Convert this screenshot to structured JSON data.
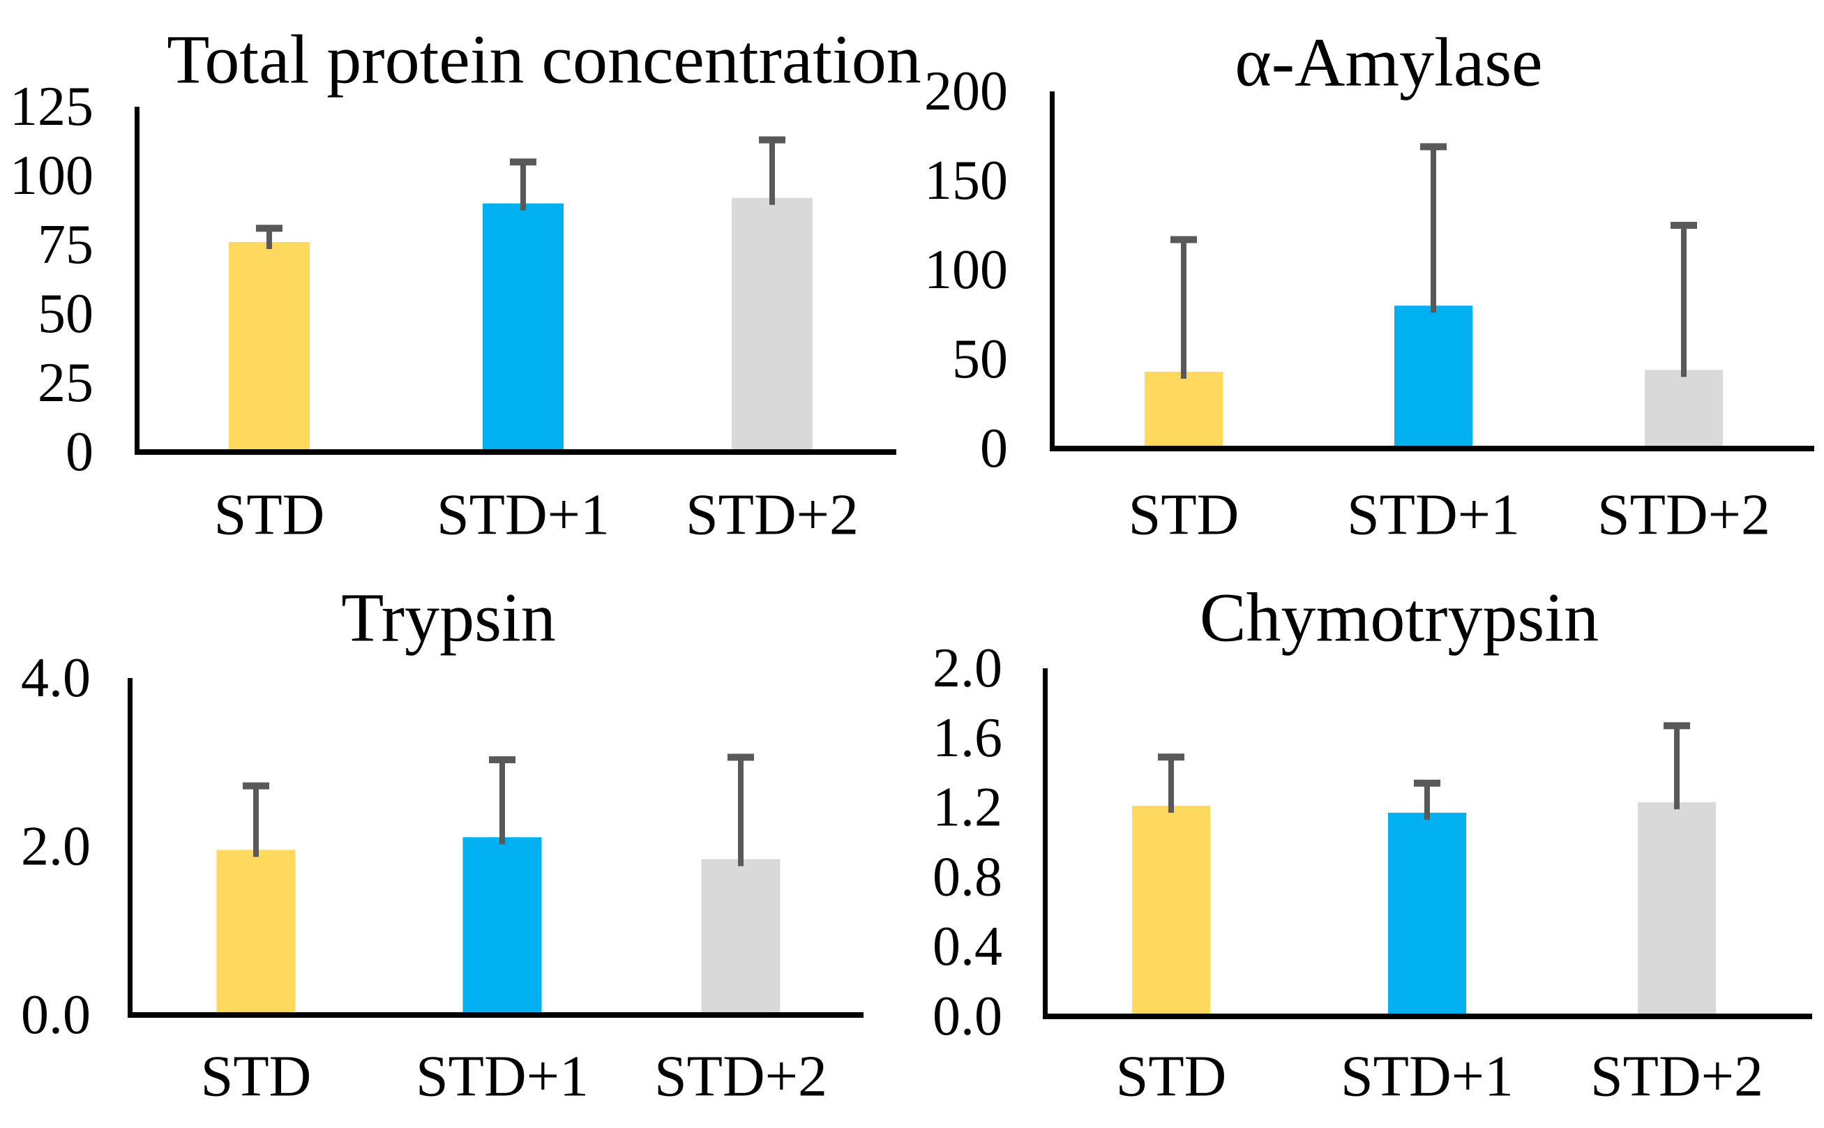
{
  "figure": {
    "background": "#FFFFFF",
    "description": "2x2 grid of bar charts with error bars"
  },
  "colors": {
    "axis": "#000000",
    "error_bar": "#595959",
    "text": "#000000",
    "bars": [
      "#FFD85E",
      "#00B0F0",
      "#D9D9D9"
    ]
  },
  "categories": [
    "STD",
    "STD+1",
    "STD+2"
  ],
  "chart_data": [
    {
      "type": "bar",
      "title": "Total protein concentration",
      "categories": [
        "STD",
        "STD+1",
        "STD+2"
      ],
      "values": [
        76,
        90,
        92
      ],
      "errors": [
        5,
        15,
        21
      ],
      "ylim": [
        0,
        125
      ],
      "yticks": [
        0,
        25,
        50,
        75,
        100,
        125
      ],
      "tick_format": "int",
      "xlabel": "",
      "ylabel": "",
      "grid": false,
      "legend": false
    },
    {
      "type": "bar",
      "title": "α-Amylase",
      "categories": [
        "STD",
        "STD+1",
        "STD+2"
      ],
      "values": [
        43,
        80,
        44
      ],
      "errors": [
        74,
        89,
        81
      ],
      "ylim": [
        0,
        200
      ],
      "yticks": [
        0,
        50,
        100,
        150,
        200
      ],
      "tick_format": "int",
      "xlabel": "",
      "ylabel": "",
      "grid": false,
      "legend": false
    },
    {
      "type": "bar",
      "title": "Trypsin",
      "categories": [
        "STD",
        "STD+1",
        "STD+2"
      ],
      "values": [
        1.96,
        2.11,
        1.85
      ],
      "errors": [
        0.76,
        0.92,
        1.21
      ],
      "ylim": [
        0,
        4
      ],
      "yticks": [
        0,
        2,
        4
      ],
      "tick_format": "1dp",
      "xlabel": "",
      "ylabel": "",
      "grid": false,
      "legend": false
    },
    {
      "type": "bar",
      "title": "Chymotrypsin",
      "categories": [
        "STD",
        "STD+1",
        "STD+2"
      ],
      "values": [
        1.21,
        1.17,
        1.23
      ],
      "errors": [
        0.28,
        0.17,
        0.44
      ],
      "ylim": [
        0,
        2
      ],
      "yticks": [
        0,
        0.4,
        0.8,
        1.2,
        1.6,
        2.0
      ],
      "tick_format": "1dp",
      "xlabel": "",
      "ylabel": "",
      "grid": false,
      "legend": false
    }
  ]
}
